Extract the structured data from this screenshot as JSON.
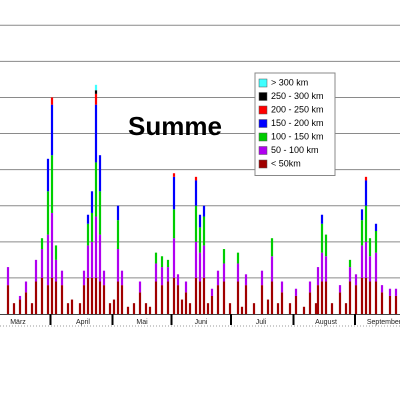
{
  "chart_data": {
    "type": "stacked_bar",
    "title": "Summe",
    "x": [
      4,
      7,
      10,
      13,
      16,
      18,
      21,
      24,
      26,
      28,
      31,
      34,
      36,
      40,
      42,
      44,
      46,
      48,
      50,
      52,
      55,
      57,
      59,
      61,
      64,
      67,
      70,
      73,
      75,
      78,
      81,
      84,
      87,
      89,
      91,
      93,
      95,
      98,
      100,
      102,
      104,
      106,
      109,
      112,
      115,
      119,
      121,
      123,
      127,
      131,
      134,
      136,
      139,
      141,
      145,
      148,
      152,
      155,
      158,
      159,
      161,
      163,
      166,
      170,
      173,
      175,
      178,
      181,
      183,
      185,
      188,
      191,
      195,
      198
    ],
    "xlim": [
      0,
      200
    ],
    "xticks": [
      {
        "value": 9,
        "label": "März"
      },
      {
        "value": 41.5,
        "label": "April"
      },
      {
        "value": 71,
        "label": "Mai"
      },
      {
        "value": 100.5,
        "label": "Juni"
      },
      {
        "value": 130.5,
        "label": "Juli"
      },
      {
        "value": 163,
        "label": "August"
      },
      {
        "value": 192,
        "label": "September"
      }
    ],
    "ylim": [
      0,
      8.7
    ],
    "yticks": [
      1,
      2,
      3,
      4,
      5,
      6,
      7,
      8
    ],
    "grid": true,
    "series": [
      {
        "name": "< 50km",
        "color": "#a00000",
        "values": [
          0.8,
          0.3,
          0.4,
          0.6,
          0.3,
          0.9,
          1.0,
          0.8,
          1.0,
          0.9,
          0.8,
          0.3,
          0.4,
          0.3,
          0.8,
          1.0,
          1.0,
          1.0,
          0.9,
          0.8,
          0.3,
          0.4,
          0.9,
          0.8,
          0.2,
          0.3,
          0.6,
          0.3,
          0.2,
          0.9,
          0.8,
          0.9,
          1.0,
          0.8,
          0.4,
          0.6,
          0.3,
          1.0,
          0.9,
          1.0,
          0.3,
          0.5,
          0.8,
          0.9,
          0.3,
          0.9,
          0.2,
          0.8,
          0.3,
          0.8,
          0.4,
          0.9,
          0.3,
          0.6,
          0.3,
          0.5,
          0.2,
          0.6,
          0.3,
          0.8,
          0.9,
          0.9,
          0.3,
          0.6,
          0.3,
          0.9,
          0.8,
          1.0,
          1.0,
          0.9,
          0.9,
          0.6,
          0.5,
          0.5
        ]
      },
      {
        "name": "50 - 100 km",
        "color": "#b000f0",
        "values": [
          0.5,
          0,
          0.1,
          0.3,
          0,
          0.6,
          0.8,
          1.4,
          1.8,
          0.6,
          0.4,
          0,
          0,
          0,
          0.4,
          0.9,
          1.0,
          1.7,
          1.3,
          0.4,
          0,
          0,
          0.9,
          0.4,
          0,
          0,
          0.3,
          0,
          0,
          0.5,
          0.5,
          0.4,
          1.1,
          0.3,
          0,
          0.3,
          0,
          1.0,
          0.8,
          0.9,
          0,
          0.2,
          0.4,
          0.5,
          0,
          0.5,
          0,
          0.3,
          0,
          0.4,
          0,
          0.7,
          0,
          0.3,
          0,
          0.2,
          0,
          0.3,
          0,
          0.5,
          0.8,
          0.7,
          0,
          0.2,
          0,
          0.4,
          0.3,
          0.9,
          1.0,
          0.7,
          0.8,
          0.2,
          0.2,
          0.2
        ]
      },
      {
        "name": "100 - 150 km",
        "color": "#00cc00",
        "values": [
          0,
          0,
          0,
          0,
          0,
          0,
          0.3,
          1.2,
          1.6,
          0.4,
          0,
          0,
          0,
          0,
          0,
          0.6,
          0.8,
          1.5,
          1.2,
          0,
          0,
          0,
          0.8,
          0,
          0,
          0,
          0,
          0,
          0,
          0.3,
          0.3,
          0.2,
          0.8,
          0,
          0,
          0,
          0,
          1.0,
          0.7,
          0.8,
          0,
          0,
          0,
          0.4,
          0,
          0.3,
          0,
          0,
          0,
          0,
          0,
          0.5,
          0,
          0,
          0,
          0,
          0,
          0,
          0,
          0,
          0.8,
          0.6,
          0,
          0,
          0,
          0.2,
          0,
          0.7,
          1.0,
          0.5,
          0.6,
          0,
          0,
          0
        ]
      },
      {
        "name": "150 - 200 km",
        "color": "#0000ff",
        "values": [
          0,
          0,
          0,
          0,
          0,
          0,
          0,
          0.9,
          1.4,
          0,
          0,
          0,
          0,
          0,
          0,
          0.25,
          0.6,
          1.6,
          1.0,
          0,
          0,
          0,
          0.4,
          0,
          0,
          0,
          0,
          0,
          0,
          0,
          0,
          0,
          0.9,
          0,
          0,
          0,
          0,
          0.7,
          0.35,
          0.3,
          0,
          0,
          0,
          0,
          0,
          0,
          0,
          0,
          0,
          0,
          0,
          0,
          0,
          0,
          0,
          0,
          0,
          0,
          0,
          0,
          0.25,
          0,
          0,
          0,
          0,
          0,
          0,
          0.3,
          0.7,
          0,
          0.2,
          0,
          0,
          0
        ]
      },
      {
        "name": "200 - 250 km",
        "color": "#ff0000",
        "values": [
          0,
          0,
          0,
          0,
          0,
          0,
          0,
          0,
          0.2,
          0,
          0,
          0,
          0,
          0,
          0,
          0,
          0,
          0.3,
          0,
          0,
          0,
          0,
          0,
          0,
          0,
          0,
          0,
          0,
          0,
          0,
          0,
          0,
          0.1,
          0,
          0,
          0,
          0,
          0.1,
          0,
          0,
          0,
          0,
          0,
          0,
          0,
          0,
          0,
          0,
          0,
          0,
          0,
          0,
          0,
          0,
          0,
          0,
          0,
          0,
          0,
          0,
          0,
          0,
          0,
          0,
          0,
          0,
          0,
          0,
          0.1,
          0,
          0,
          0,
          0,
          0
        ]
      },
      {
        "name": "250 - 300 km",
        "color": "#000000",
        "values": [
          0,
          0,
          0,
          0,
          0,
          0,
          0,
          0,
          0,
          0,
          0,
          0,
          0,
          0,
          0,
          0,
          0,
          0.1,
          0,
          0,
          0,
          0,
          0,
          0,
          0,
          0,
          0,
          0,
          0,
          0,
          0,
          0,
          0,
          0,
          0,
          0,
          0,
          0,
          0,
          0,
          0,
          0,
          0,
          0,
          0,
          0,
          0,
          0,
          0,
          0,
          0,
          0,
          0,
          0,
          0,
          0,
          0,
          0,
          0,
          0,
          0,
          0,
          0,
          0,
          0,
          0,
          0,
          0,
          0,
          0,
          0,
          0,
          0,
          0
        ]
      },
      {
        "name": "> 300 km",
        "color": "#40ffff",
        "values": [
          0,
          0,
          0,
          0,
          0,
          0,
          0,
          0,
          0,
          0,
          0,
          0,
          0,
          0,
          0,
          0,
          0,
          0.15,
          0,
          0,
          0,
          0,
          0,
          0,
          0,
          0,
          0,
          0,
          0,
          0,
          0,
          0,
          0,
          0,
          0,
          0,
          0,
          0,
          0,
          0,
          0,
          0,
          0,
          0,
          0,
          0,
          0,
          0,
          0,
          0,
          0,
          0,
          0,
          0,
          0,
          0,
          0,
          0,
          0,
          0,
          0,
          0,
          0,
          0,
          0,
          0,
          0,
          0,
          0,
          0,
          0,
          0,
          0,
          0
        ]
      }
    ]
  }
}
